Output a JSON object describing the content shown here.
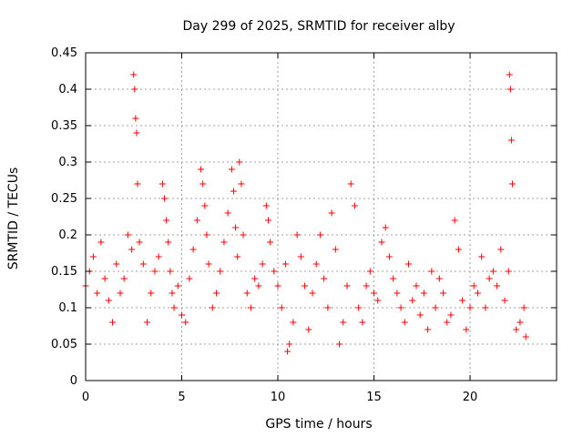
{
  "chart_data": {
    "type": "scatter",
    "title": "Day 299 of 2025, SRMTID for receiver alby",
    "xlabel": "GPS time / hours",
    "ylabel": "SRMTID / TECUs",
    "xlim": [
      0,
      24.5
    ],
    "ylim": [
      0,
      0.45
    ],
    "x_ticks": [
      0,
      5,
      10,
      15,
      20
    ],
    "x_tick_labels": [
      "0",
      "5",
      "10",
      "15",
      "20"
    ],
    "y_ticks": [
      0,
      0.05,
      0.1,
      0.15,
      0.2,
      0.25,
      0.3,
      0.35,
      0.4,
      0.45
    ],
    "y_tick_labels": [
      "0",
      "0.05",
      "0.1",
      "0.15",
      "0.2",
      "0.25",
      "0.3",
      "0.35",
      "0.4",
      "0.45"
    ],
    "grid": true,
    "marker": "+",
    "color": "#ff0000",
    "x": [
      0.0,
      0.2,
      0.4,
      0.6,
      0.8,
      1.0,
      1.2,
      1.4,
      1.6,
      1.8,
      2.0,
      2.2,
      2.4,
      2.5,
      2.55,
      2.6,
      2.65,
      2.7,
      2.8,
      3.0,
      3.2,
      3.4,
      3.6,
      3.8,
      4.0,
      4.1,
      4.2,
      4.3,
      4.4,
      4.5,
      4.6,
      4.8,
      5.0,
      5.2,
      5.4,
      5.6,
      5.8,
      6.0,
      6.1,
      6.2,
      6.3,
      6.4,
      6.6,
      6.8,
      7.0,
      7.2,
      7.4,
      7.6,
      7.7,
      7.8,
      7.9,
      8.0,
      8.1,
      8.2,
      8.4,
      8.6,
      8.8,
      9.0,
      9.2,
      9.4,
      9.5,
      9.6,
      9.8,
      10.0,
      10.2,
      10.4,
      10.5,
      10.6,
      10.8,
      11.0,
      11.2,
      11.4,
      11.6,
      11.8,
      12.0,
      12.2,
      12.4,
      12.6,
      12.8,
      13.0,
      13.2,
      13.4,
      13.6,
      13.8,
      14.0,
      14.2,
      14.4,
      14.6,
      14.8,
      15.0,
      15.2,
      15.4,
      15.6,
      15.8,
      16.0,
      16.2,
      16.4,
      16.6,
      16.8,
      17.0,
      17.2,
      17.4,
      17.6,
      17.8,
      18.0,
      18.2,
      18.4,
      18.6,
      18.8,
      19.0,
      19.2,
      19.4,
      19.6,
      19.8,
      20.0,
      20.2,
      20.4,
      20.6,
      20.8,
      21.0,
      21.2,
      21.4,
      21.6,
      21.8,
      22.0,
      22.05,
      22.1,
      22.15,
      22.2,
      22.4,
      22.6,
      22.8,
      22.9
    ],
    "y": [
      0.13,
      0.15,
      0.17,
      0.12,
      0.19,
      0.14,
      0.11,
      0.08,
      0.16,
      0.12,
      0.14,
      0.2,
      0.18,
      0.42,
      0.4,
      0.36,
      0.34,
      0.27,
      0.19,
      0.16,
      0.08,
      0.12,
      0.15,
      0.17,
      0.27,
      0.25,
      0.22,
      0.19,
      0.15,
      0.12,
      0.1,
      0.13,
      0.09,
      0.08,
      0.14,
      0.18,
      0.22,
      0.29,
      0.27,
      0.24,
      0.2,
      0.16,
      0.1,
      0.12,
      0.15,
      0.19,
      0.23,
      0.29,
      0.26,
      0.21,
      0.17,
      0.3,
      0.27,
      0.2,
      0.12,
      0.1,
      0.14,
      0.13,
      0.16,
      0.24,
      0.22,
      0.19,
      0.15,
      0.13,
      0.1,
      0.16,
      0.04,
      0.05,
      0.08,
      0.2,
      0.17,
      0.13,
      0.07,
      0.12,
      0.16,
      0.2,
      0.14,
      0.1,
      0.23,
      0.18,
      0.05,
      0.08,
      0.13,
      0.27,
      0.24,
      0.1,
      0.08,
      0.13,
      0.15,
      0.12,
      0.11,
      0.19,
      0.21,
      0.17,
      0.14,
      0.12,
      0.1,
      0.08,
      0.16,
      0.11,
      0.13,
      0.09,
      0.12,
      0.07,
      0.15,
      0.1,
      0.14,
      0.12,
      0.08,
      0.09,
      0.22,
      0.18,
      0.11,
      0.07,
      0.1,
      0.13,
      0.12,
      0.17,
      0.1,
      0.14,
      0.15,
      0.13,
      0.18,
      0.11,
      0.15,
      0.42,
      0.4,
      0.33,
      0.27,
      0.07,
      0.08,
      0.1,
      0.06
    ]
  }
}
